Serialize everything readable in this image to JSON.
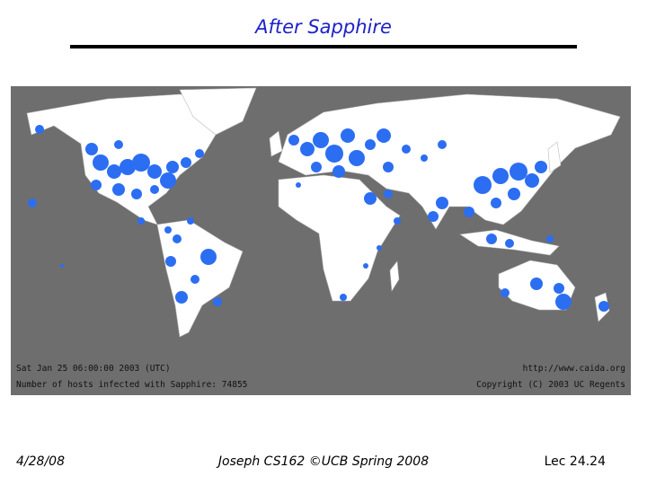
{
  "header": {
    "title": "After Sapphire"
  },
  "map": {
    "timestamp": "Sat Jan 25 06:00:00 2003 (UTC)",
    "infected": "Number of hosts infected with Sapphire: 74855",
    "url": "http://www.caida.org",
    "copyright": "Copyright (C) 2003 UC Regents"
  },
  "footer": {
    "date": "4/28/08",
    "center": "Joseph CS162 ©UCB Spring 2008",
    "page": "Lec 24.24"
  }
}
